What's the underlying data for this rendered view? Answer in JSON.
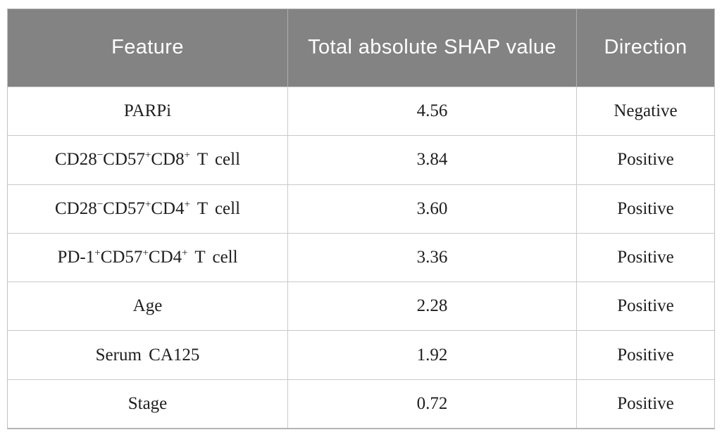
{
  "table": {
    "headers": [
      "Feature",
      "Total absolute SHAP value",
      "Direction"
    ],
    "rows": [
      {
        "feature": [
          {
            "t": "PARPi"
          }
        ],
        "value": "4.56",
        "direction": "Negative"
      },
      {
        "feature": [
          {
            "t": "CD28"
          },
          {
            "t": "−",
            "sup": true
          },
          {
            "t": "CD57"
          },
          {
            "t": "+",
            "sup": true
          },
          {
            "t": "CD8"
          },
          {
            "t": "+",
            "sup": true
          },
          {
            "t": " T cell"
          }
        ],
        "value": "3.84",
        "direction": "Positive"
      },
      {
        "feature": [
          {
            "t": "CD28"
          },
          {
            "t": "−",
            "sup": true
          },
          {
            "t": "CD57"
          },
          {
            "t": "+",
            "sup": true
          },
          {
            "t": "CD4"
          },
          {
            "t": "+",
            "sup": true
          },
          {
            "t": " T cell"
          }
        ],
        "value": "3.60",
        "direction": "Positive"
      },
      {
        "feature": [
          {
            "t": "PD-1"
          },
          {
            "t": "+",
            "sup": true
          },
          {
            "t": "CD57"
          },
          {
            "t": "+",
            "sup": true
          },
          {
            "t": "CD4"
          },
          {
            "t": "+",
            "sup": true
          },
          {
            "t": " T cell"
          }
        ],
        "value": "3.36",
        "direction": "Positive"
      },
      {
        "feature": [
          {
            "t": "Age"
          }
        ],
        "value": "2.28",
        "direction": "Positive"
      },
      {
        "feature": [
          {
            "t": "Serum CA125"
          }
        ],
        "value": "1.92",
        "direction": "Positive"
      },
      {
        "feature": [
          {
            "t": "Stage"
          }
        ],
        "value": "0.72",
        "direction": "Positive"
      }
    ]
  },
  "colors": {
    "header_bg": "#838383",
    "header_text": "#ffffff",
    "body_bg": "#ffffff",
    "body_text": "#1e1e1e",
    "grid_line": "#c9c9c9"
  }
}
